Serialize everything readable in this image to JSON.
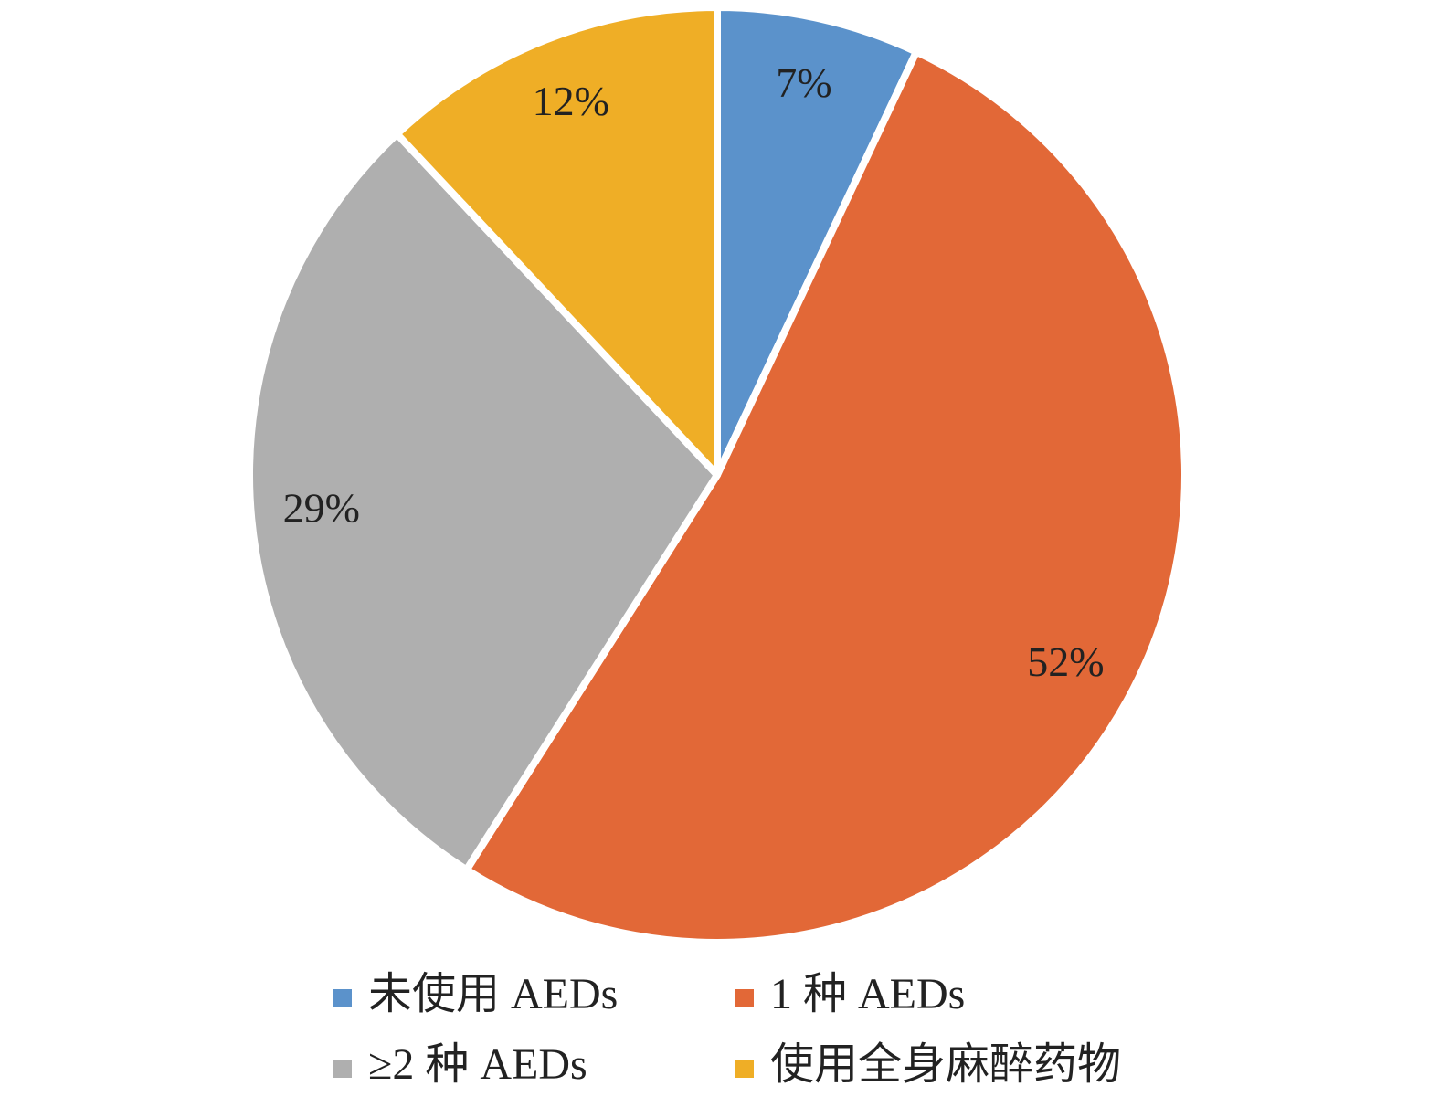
{
  "chart_data": {
    "type": "pie",
    "categories": [
      "未使用 AEDs",
      "1 种 AEDs",
      "≥2 种 AEDs",
      "使用全身麻醉药物"
    ],
    "values": [
      7,
      52,
      29,
      12
    ],
    "value_labels": [
      "7%",
      "52%",
      "29%",
      "12%"
    ],
    "colors": [
      "#5b92cb",
      "#e26837",
      "#afafaf",
      "#efae26"
    ]
  }
}
